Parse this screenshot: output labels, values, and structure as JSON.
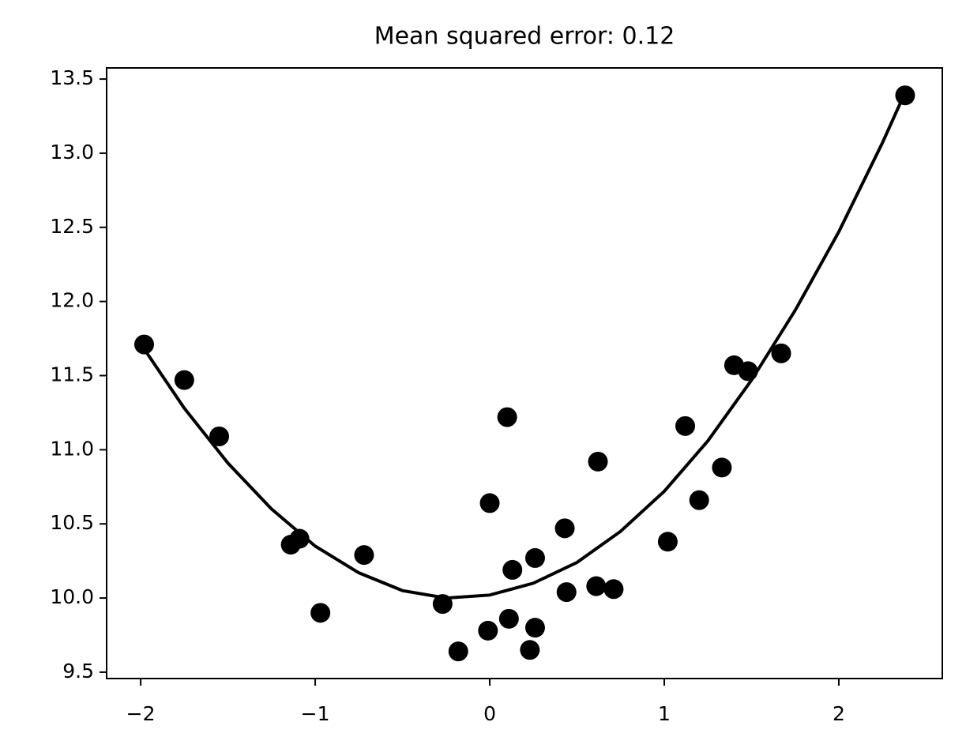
{
  "chart_data": {
    "type": "scatter",
    "title": "Mean squared error: 0.12",
    "x": [
      -1.98,
      -1.75,
      -1.55,
      -1.14,
      -1.09,
      -0.97,
      -0.72,
      -0.27,
      -0.18,
      -0.01,
      0.0,
      0.1,
      0.11,
      0.13,
      0.23,
      0.26,
      0.26,
      0.43,
      0.44,
      0.61,
      0.62,
      0.71,
      1.02,
      1.12,
      1.2,
      1.33,
      1.4,
      1.48,
      1.67,
      2.38
    ],
    "values": [
      11.71,
      11.47,
      11.09,
      10.36,
      10.4,
      9.9,
      10.29,
      9.96,
      9.64,
      9.78,
      10.64,
      11.22,
      9.86,
      10.19,
      9.65,
      9.8,
      10.27,
      10.47,
      10.04,
      10.08,
      10.92,
      10.06,
      10.38,
      11.16,
      10.66,
      10.88,
      11.57,
      11.53,
      11.65,
      13.39
    ],
    "color": "#000000",
    "line": {
      "x": [
        -1.98,
        -1.75,
        -1.5,
        -1.25,
        -1.0,
        -0.75,
        -0.5,
        -0.25,
        0,
        0.25,
        0.5,
        0.75,
        1.0,
        1.25,
        1.5,
        1.75,
        2.0,
        2.25,
        2.38
      ],
      "values": [
        11.68,
        11.28,
        10.91,
        10.6,
        10.35,
        10.17,
        10.05,
        10.0,
        10.02,
        10.1,
        10.24,
        10.45,
        10.72,
        11.06,
        11.47,
        11.94,
        12.47,
        13.07,
        13.41
      ],
      "color": "#000000"
    },
    "xlim": [
      -2.195,
      2.593
    ],
    "ylim": [
      9.457,
      13.575
    ],
    "xticks": [
      {
        "value": -2,
        "label": "−2"
      },
      {
        "value": -1,
        "label": "−1"
      },
      0,
      1,
      2
    ],
    "yticks": [
      9.5,
      {
        "value": 10,
        "label": "10.0"
      },
      10.5,
      {
        "value": 11,
        "label": "11.0"
      },
      11.5,
      {
        "value": 12,
        "label": "12.0"
      },
      12.5,
      {
        "value": 13,
        "label": "13.0"
      },
      13.5
    ],
    "grid": false
  }
}
